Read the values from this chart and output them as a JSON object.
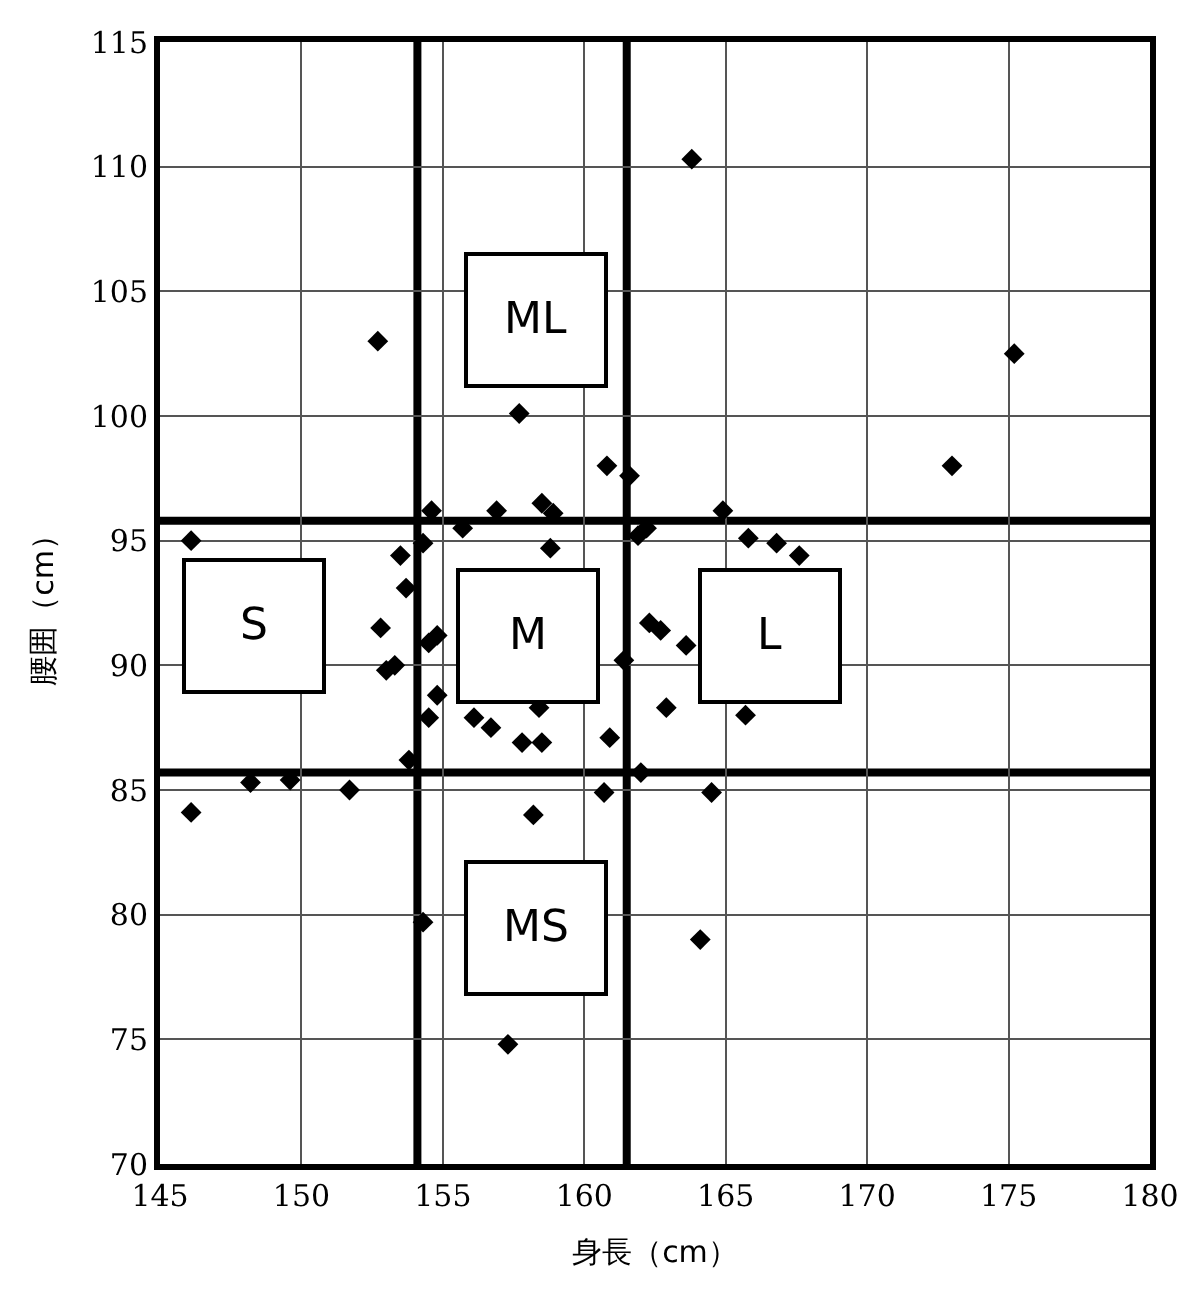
{
  "chart_data": {
    "type": "scatter",
    "xlabel": "身長（cm）",
    "ylabel": "腰囲（cm）",
    "x": [
      163.8,
      152.7,
      175.2,
      157.7,
      160.8,
      161.6,
      173.0,
      146.1,
      153.5,
      154.3,
      154.6,
      155.7,
      156.9,
      158.5,
      158.9,
      158.8,
      153.7,
      152.8,
      154.8,
      154.5,
      153.3,
      153.0,
      154.8,
      154.5,
      156.1,
      156.7,
      157.8,
      158.5,
      160.9,
      153.8,
      148.2,
      149.6,
      151.7,
      146.1,
      158.2,
      160.7,
      162.0,
      162.3,
      161.9,
      162.2,
      164.9,
      165.8,
      166.8,
      167.6,
      162.7,
      163.6,
      162.9,
      165.7,
      161.4,
      158.4,
      164.5,
      154.3,
      164.1,
      157.3
    ],
    "series": [
      {
        "color": "#000000",
        "values": [
          110.3,
          103.0,
          102.5,
          100.1,
          98.0,
          97.6,
          98.0,
          95.0,
          94.4,
          94.9,
          96.2,
          95.5,
          96.2,
          96.5,
          96.1,
          94.7,
          93.1,
          91.5,
          91.2,
          90.9,
          90.0,
          89.8,
          88.8,
          87.9,
          87.9,
          87.5,
          86.9,
          86.9,
          87.1,
          86.2,
          85.3,
          85.4,
          85.0,
          84.1,
          84.0,
          84.9,
          85.7,
          91.7,
          95.2,
          95.5,
          96.2,
          95.1,
          94.9,
          94.4,
          91.4,
          90.8,
          88.3,
          88.0,
          90.2,
          88.3,
          84.9,
          79.7,
          79.0,
          74.8
        ]
      }
    ],
    "xlim": [
      145,
      180
    ],
    "xticks": [
      145,
      150,
      155,
      160,
      165,
      170,
      175,
      180
    ],
    "ylim": [
      70,
      115
    ],
    "yticks": [
      70,
      75,
      80,
      85,
      90,
      95,
      100,
      105,
      110,
      115
    ],
    "grid": true,
    "marker": "diamond",
    "legend": false,
    "ref_lines": [
      {
        "axis": "x",
        "value": 154.1,
        "color": "#000000"
      },
      {
        "axis": "x",
        "value": 161.5,
        "color": "#000000"
      },
      {
        "axis": "y",
        "value": 95.8,
        "color": "#000000"
      },
      {
        "axis": "y",
        "value": 85.7,
        "color": "#000000"
      }
    ],
    "annotations": [
      "S",
      "M",
      "L",
      "ML",
      "MS"
    ]
  }
}
